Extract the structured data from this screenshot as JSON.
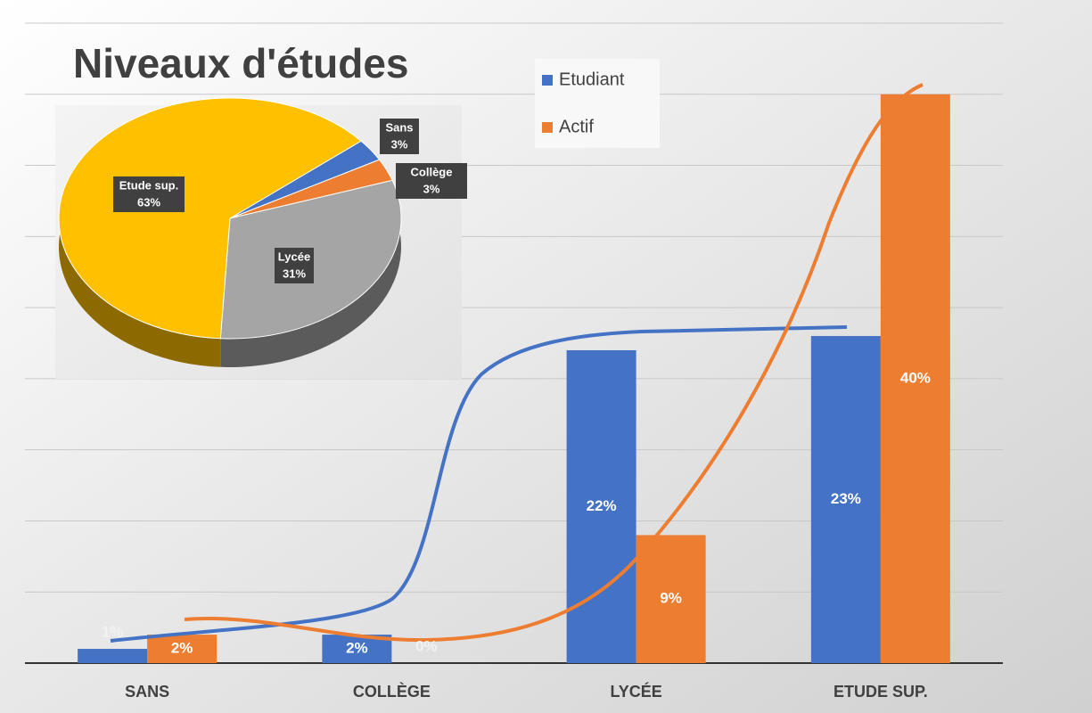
{
  "chart_data": [
    {
      "type": "bar",
      "title": "Niveaux d'études",
      "categories": [
        "SANS",
        "COLLÈGE",
        "LYCÉE",
        "ETUDE SUP."
      ],
      "series": [
        {
          "name": "Etudiant",
          "color": "#4472c4",
          "values": [
            1,
            2,
            22,
            23
          ],
          "value_labels": [
            "1%",
            "2%",
            "22%",
            "23%"
          ]
        },
        {
          "name": "Actif",
          "color": "#ed7d31",
          "values": [
            2,
            0,
            9,
            40
          ],
          "value_labels": [
            "2%",
            "0%",
            "9%",
            "40%"
          ]
        }
      ],
      "ylim": [
        0,
        45
      ],
      "yticks": [
        0,
        5,
        10,
        15,
        20,
        25,
        30,
        35,
        40,
        45
      ],
      "grid": true,
      "legend": "top"
    },
    {
      "type": "pie",
      "categories": [
        "Sans",
        "Collège",
        "Lycée",
        "Etude sup."
      ],
      "values": [
        3,
        3,
        31,
        63
      ],
      "value_labels": [
        "3%",
        "3%",
        "31%",
        "63%"
      ],
      "colors": [
        "#4472c4",
        "#ed7d31",
        "#a5a5a5",
        "#ffc000"
      ]
    }
  ]
}
